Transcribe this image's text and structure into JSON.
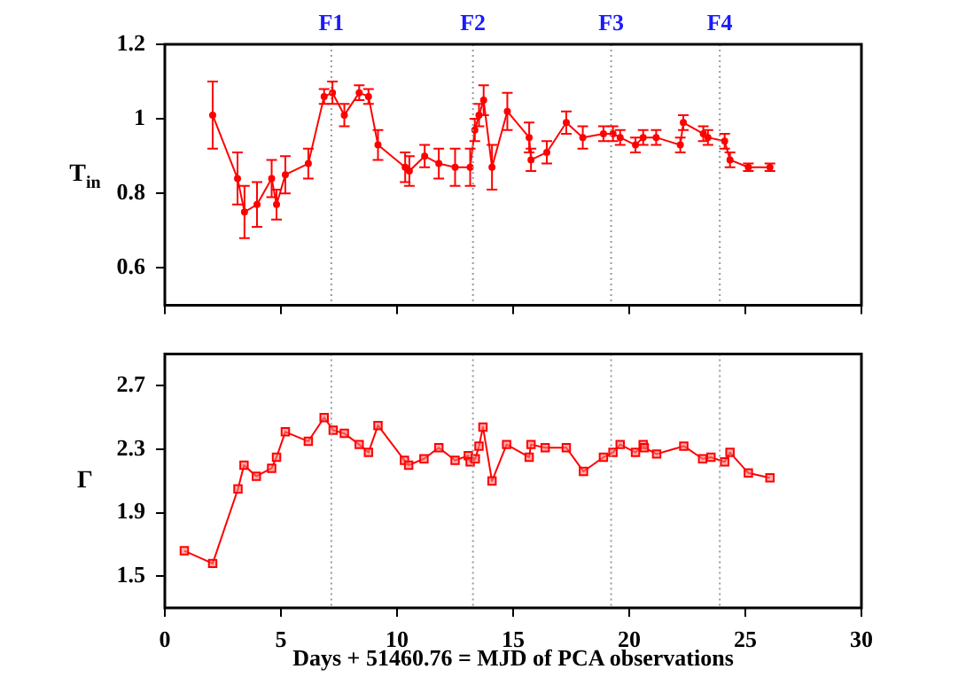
{
  "chart_data": [
    {
      "type": "line",
      "ylabel": "T$_{in}$",
      "x": [
        2.06,
        3.13,
        3.43,
        3.97,
        4.6,
        4.81,
        5.19,
        6.18,
        6.86,
        7.22,
        7.73,
        8.37,
        8.77,
        9.18,
        10.35,
        10.53,
        11.19,
        11.8,
        12.5,
        13.15,
        13.35,
        13.53,
        13.73,
        14.09,
        14.75,
        15.69,
        15.77,
        16.45,
        17.29,
        18.0,
        18.89,
        19.3,
        19.61,
        20.27,
        20.6,
        21.16,
        22.2,
        22.33,
        23.19,
        23.39,
        24.11,
        24.34,
        25.13,
        26.06
      ],
      "series": [
        {
          "color": "#ff0000",
          "values": [
            1.01,
            0.84,
            0.75,
            0.77,
            0.84,
            0.77,
            0.85,
            0.88,
            1.06,
            1.07,
            1.01,
            1.07,
            1.06,
            0.93,
            0.87,
            0.86,
            0.9,
            0.88,
            0.87,
            0.87,
            0.97,
            1.01,
            1.05,
            0.87,
            1.02,
            0.95,
            0.89,
            0.91,
            0.99,
            0.95,
            0.96,
            0.96,
            0.95,
            0.93,
            0.95,
            0.95,
            0.93,
            0.99,
            0.96,
            0.95,
            0.94,
            0.89,
            0.87,
            0.87
          ],
          "errors": [
            0.09,
            0.07,
            0.07,
            0.06,
            0.05,
            0.04,
            0.05,
            0.04,
            0.02,
            0.03,
            0.03,
            0.02,
            0.02,
            0.04,
            0.04,
            0.04,
            0.03,
            0.04,
            0.05,
            0.05,
            0.03,
            0.03,
            0.04,
            0.06,
            0.05,
            0.04,
            0.03,
            0.03,
            0.03,
            0.03,
            0.02,
            0.02,
            0.02,
            0.02,
            0.02,
            0.02,
            0.02,
            0.02,
            0.02,
            0.02,
            0.02,
            0.02,
            0.01,
            0.01
          ]
        }
      ],
      "xlim": [
        0,
        30
      ],
      "xticks": [
        0,
        5,
        10,
        15,
        20,
        25,
        30
      ],
      "ylim": [
        0.5,
        1.2
      ],
      "yticks": [
        0.6,
        0.8,
        1,
        1.2
      ],
      "tick_labels": "y",
      "marker": "circle",
      "ref_lines": [
        {
          "axis": "x",
          "value": 7.17,
          "label": "F1",
          "color": "#999999",
          "line_style": "dotted"
        },
        {
          "axis": "x",
          "value": 13.27,
          "label": "F2",
          "color": "#999999",
          "line_style": "dotted"
        },
        {
          "axis": "x",
          "value": 19.22,
          "label": "F3",
          "color": "#999999",
          "line_style": "dotted"
        },
        {
          "axis": "x",
          "value": 23.9,
          "label": "F4",
          "color": "#999999",
          "line_style": "dotted"
        }
      ]
    },
    {
      "type": "line",
      "ylabel": "Γ",
      "xlabel": "Days + 51460.76 = MJD of PCA observations",
      "x": [
        0.84,
        2.06,
        3.15,
        3.41,
        3.94,
        4.6,
        4.81,
        5.19,
        6.18,
        6.86,
        7.25,
        7.73,
        8.37,
        8.77,
        9.18,
        10.32,
        10.5,
        11.16,
        11.8,
        12.5,
        13.07,
        13.15,
        13.37,
        13.53,
        13.7,
        14.09,
        14.72,
        15.69,
        15.77,
        16.38,
        17.29,
        18.03,
        18.89,
        19.3,
        19.61,
        20.27,
        20.6,
        20.65,
        21.18,
        22.2,
        22.35,
        23.16,
        23.52,
        24.11,
        24.34,
        25.13,
        26.06
      ],
      "series": [
        {
          "color": "#ff0000",
          "values": [
            1.66,
            1.58,
            2.05,
            2.2,
            2.13,
            2.18,
            2.25,
            2.41,
            2.35,
            2.5,
            2.42,
            2.4,
            2.33,
            2.28,
            2.45,
            2.23,
            2.2,
            2.24,
            2.31,
            2.23,
            2.26,
            2.22,
            2.24,
            2.32,
            2.44,
            2.1,
            2.33,
            2.25,
            2.33,
            2.31,
            2.31,
            2.16,
            2.25,
            2.28,
            2.33,
            2.28,
            2.33,
            2.31,
            2.27,
            null,
            2.32,
            2.24,
            2.25,
            2.22,
            2.28,
            2.15,
            2.12
          ]
        }
      ],
      "xlim": [
        0,
        30
      ],
      "xticks": [
        0,
        5,
        10,
        15,
        20,
        25,
        30
      ],
      "ylim": [
        1.3,
        2.9
      ],
      "yticks": [
        1.5,
        1.9,
        2.3,
        2.7
      ],
      "marker": "square",
      "ref_lines": [
        {
          "axis": "x",
          "value": 7.17,
          "color": "#999999",
          "line_style": "dotted"
        },
        {
          "axis": "x",
          "value": 13.27,
          "color": "#999999",
          "line_style": "dotted"
        },
        {
          "axis": "x",
          "value": 19.22,
          "color": "#999999",
          "line_style": "dotted"
        },
        {
          "axis": "x",
          "value": 23.9,
          "color": "#999999",
          "line_style": "dotted"
        }
      ]
    }
  ]
}
